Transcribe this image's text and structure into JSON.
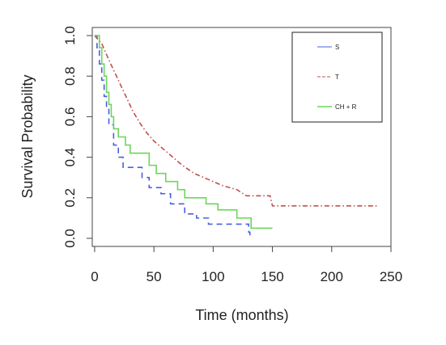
{
  "chart_data": {
    "type": "line",
    "xlabel": "Time (months)",
    "ylabel": "Survival Probability",
    "xlim": [
      -2,
      250
    ],
    "ylim": [
      -0.04,
      1.04
    ],
    "x_ticks": [
      0,
      50,
      100,
      150,
      200,
      250
    ],
    "y_ticks": [
      0.0,
      0.2,
      0.4,
      0.6,
      0.8,
      1.0
    ],
    "x_tick_labels": [
      "0",
      "50",
      "100",
      "150",
      "200",
      "250"
    ],
    "y_tick_labels": [
      "0.0",
      "0.2",
      "0.4",
      "0.6",
      "0.8",
      "1.0"
    ],
    "grid": false,
    "legend_position": "top-right",
    "series": [
      {
        "name": "S",
        "color": "#4a5fe0",
        "dash": "7,5",
        "step": true,
        "x": [
          0,
          2,
          4,
          6,
          8,
          10,
          12,
          16,
          20,
          24,
          40,
          46,
          56,
          64,
          76,
          86,
          96,
          130,
          131
        ],
        "y": [
          1.0,
          0.94,
          0.86,
          0.78,
          0.7,
          0.64,
          0.56,
          0.46,
          0.4,
          0.35,
          0.3,
          0.25,
          0.22,
          0.17,
          0.12,
          0.1,
          0.07,
          0.03,
          0.0
        ]
      },
      {
        "name": "T",
        "color": "#c0504d",
        "dash": "6,3,1.5,3",
        "step": false,
        "x": [
          0,
          3,
          6,
          9,
          12,
          16,
          20,
          24,
          28,
          32,
          38,
          44,
          50,
          58,
          66,
          74,
          84,
          96,
          108,
          120,
          128,
          148,
          150,
          200,
          240
        ],
        "y": [
          1.0,
          0.98,
          0.96,
          0.92,
          0.88,
          0.83,
          0.78,
          0.73,
          0.68,
          0.63,
          0.57,
          0.52,
          0.48,
          0.44,
          0.4,
          0.36,
          0.32,
          0.29,
          0.26,
          0.24,
          0.21,
          0.21,
          0.16,
          0.16,
          0.16
        ]
      },
      {
        "name": "CH + R",
        "color": "#6cd65a",
        "dash": "",
        "step": true,
        "x": [
          0,
          4,
          6,
          8,
          10,
          12,
          14,
          16,
          20,
          26,
          30,
          46,
          52,
          60,
          70,
          76,
          94,
          104,
          120,
          132,
          150
        ],
        "y": [
          1.0,
          0.94,
          0.86,
          0.8,
          0.72,
          0.66,
          0.6,
          0.54,
          0.5,
          0.46,
          0.42,
          0.36,
          0.32,
          0.28,
          0.24,
          0.2,
          0.17,
          0.14,
          0.1,
          0.05,
          0.05
        ]
      }
    ]
  }
}
